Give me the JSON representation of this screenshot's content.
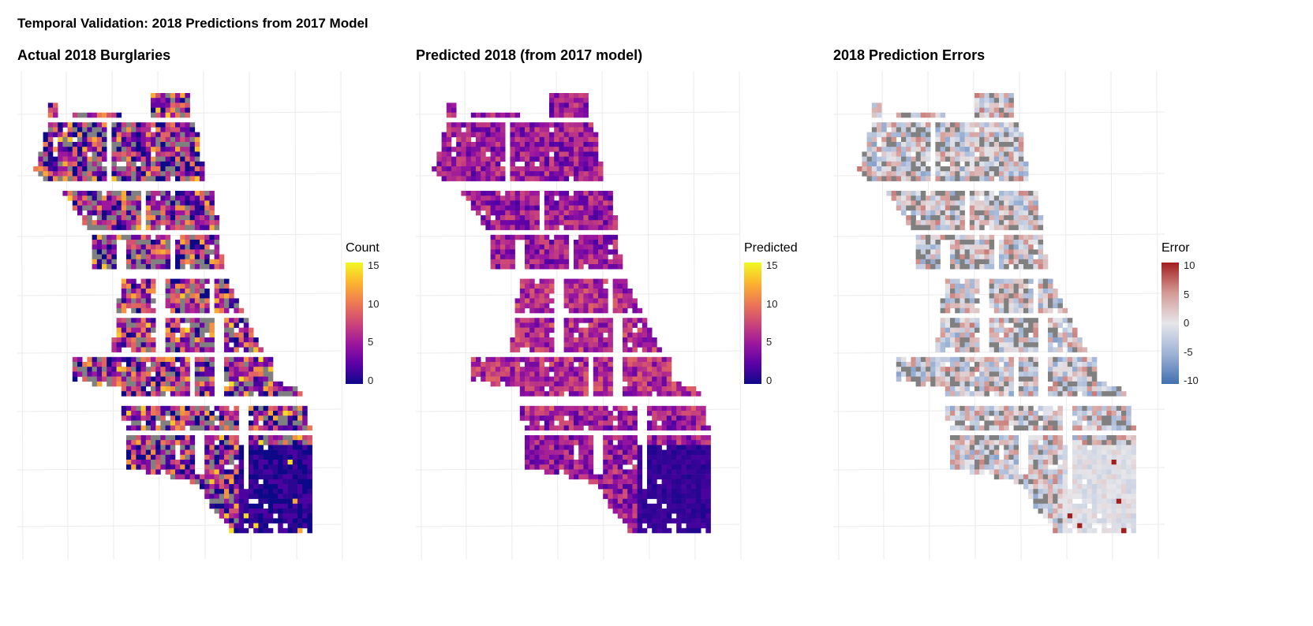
{
  "title": "Temporal Validation: 2018 Predictions from 2017 Model",
  "na_color": "#808080",
  "panels": [
    {
      "title": "Actual 2018 Burglaries",
      "legend": {
        "title": "Count",
        "ticks": [
          "15",
          "10",
          "5",
          "0"
        ],
        "range": [
          0,
          15
        ],
        "palette": [
          "#0d0887",
          "#5c01a6",
          "#9c179e",
          "#cc4778",
          "#ed7953",
          "#fdb42f",
          "#f0f921"
        ]
      }
    },
    {
      "title": "Predicted 2018 (from 2017 model)",
      "legend": {
        "title": "Predicted",
        "ticks": [
          "15",
          "10",
          "5",
          "0"
        ],
        "range": [
          0,
          15
        ],
        "palette": [
          "#0d0887",
          "#5c01a6",
          "#9c179e",
          "#cc4778",
          "#ed7953",
          "#fdb42f",
          "#f0f921"
        ]
      }
    },
    {
      "title": "2018 Prediction Errors",
      "legend": {
        "title": "Error",
        "ticks": [
          "10",
          "5",
          "0",
          "-5",
          "-10"
        ],
        "range": [
          -10,
          10
        ],
        "palette": [
          "#4170b0",
          "#9fb3d6",
          "#e6e6ea",
          "#d49a96",
          "#a31f1f"
        ]
      }
    }
  ]
}
